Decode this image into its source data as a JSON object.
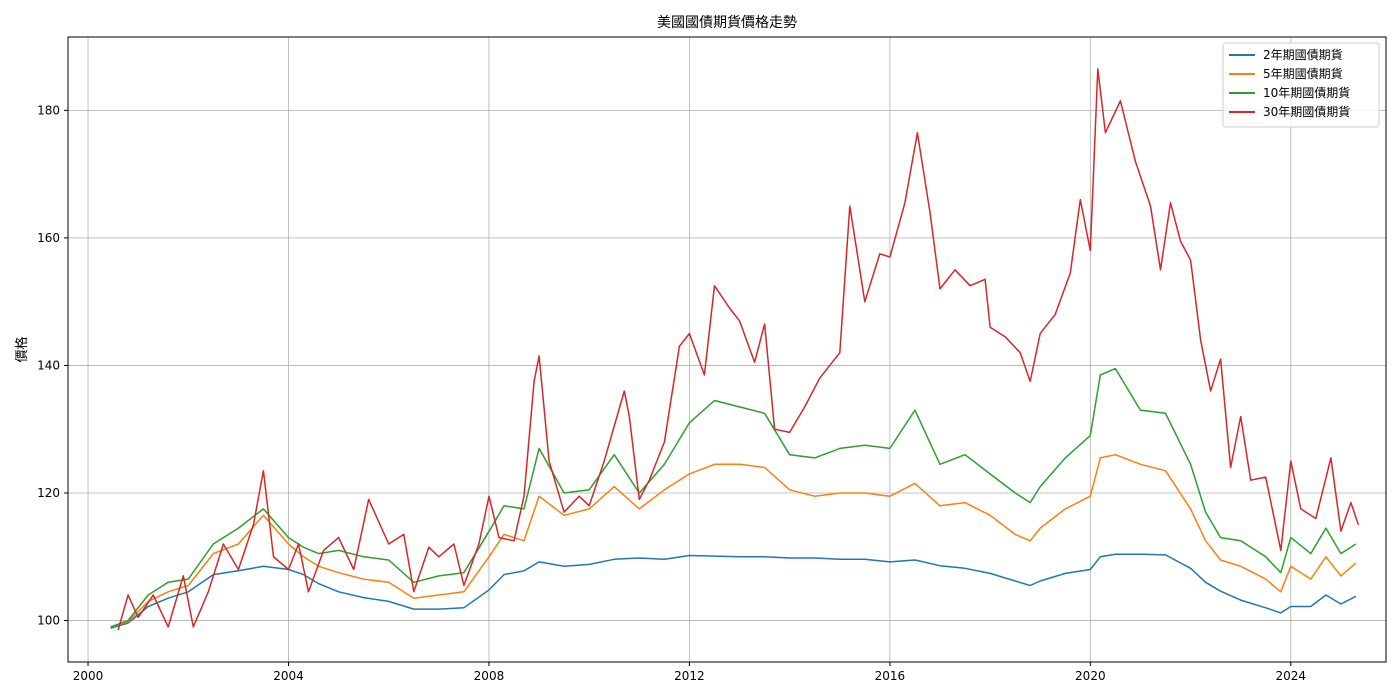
{
  "chart_data": {
    "type": "line",
    "title": "美國國債期貨價格走勢",
    "xlabel": "",
    "ylabel": "價格",
    "xlim": [
      1999.6,
      2025.9
    ],
    "ylim": [
      93.5,
      191.5
    ],
    "x_ticks": [
      2000,
      2004,
      2008,
      2012,
      2016,
      2020,
      2024
    ],
    "y_ticks": [
      100,
      120,
      140,
      160,
      180
    ],
    "grid": true,
    "legend_position": "top-right",
    "series": [
      {
        "name": "2年期國債期貨",
        "color": "#1f77b4",
        "x": [
          2000.45,
          2000.8,
          2001.2,
          2001.6,
          2002.0,
          2002.5,
          2003.0,
          2003.5,
          2004.0,
          2004.3,
          2004.6,
          2005.0,
          2005.5,
          2006.0,
          2006.5,
          2007.0,
          2007.5,
          2008.0,
          2008.3,
          2008.7,
          2009.0,
          2009.5,
          2010.0,
          2010.5,
          2011.0,
          2011.5,
          2012.0,
          2012.5,
          2013.0,
          2013.5,
          2014.0,
          2014.5,
          2015.0,
          2015.5,
          2016.0,
          2016.5,
          2017.0,
          2017.5,
          2018.0,
          2018.5,
          2018.8,
          2019.0,
          2019.5,
          2020.0,
          2020.2,
          2020.5,
          2021.0,
          2021.5,
          2022.0,
          2022.3,
          2022.6,
          2023.0,
          2023.5,
          2023.8,
          2024.0,
          2024.4,
          2024.7,
          2025.0,
          2025.3
        ],
        "values": [
          98.8,
          99.6,
          102.2,
          103.5,
          104.5,
          107.2,
          107.8,
          108.5,
          108.0,
          107.2,
          105.8,
          104.5,
          103.6,
          103.0,
          101.8,
          101.8,
          102.0,
          104.8,
          107.2,
          107.8,
          109.2,
          108.5,
          108.8,
          109.6,
          109.8,
          109.6,
          110.2,
          110.1,
          110.0,
          110.0,
          109.8,
          109.8,
          109.6,
          109.6,
          109.2,
          109.5,
          108.6,
          108.2,
          107.4,
          106.2,
          105.5,
          106.2,
          107.4,
          108.0,
          110.0,
          110.4,
          110.4,
          110.3,
          108.2,
          106.0,
          104.6,
          103.2,
          102.0,
          101.2,
          102.2,
          102.2,
          104.0,
          102.6,
          103.8
        ]
      },
      {
        "name": "5年期國債期貨",
        "color": "#ff7f0e",
        "x": [
          2000.45,
          2000.8,
          2001.2,
          2001.6,
          2002.0,
          2002.5,
          2003.0,
          2003.5,
          2004.0,
          2004.3,
          2004.6,
          2005.0,
          2005.5,
          2006.0,
          2006.5,
          2007.0,
          2007.5,
          2008.0,
          2008.3,
          2008.7,
          2009.0,
          2009.5,
          2010.0,
          2010.5,
          2011.0,
          2011.5,
          2012.0,
          2012.5,
          2013.0,
          2013.5,
          2014.0,
          2014.5,
          2015.0,
          2015.5,
          2016.0,
          2016.5,
          2017.0,
          2017.5,
          2018.0,
          2018.5,
          2018.8,
          2019.0,
          2019.5,
          2020.0,
          2020.2,
          2020.5,
          2021.0,
          2021.5,
          2022.0,
          2022.3,
          2022.6,
          2023.0,
          2023.5,
          2023.8,
          2024.0,
          2024.4,
          2024.7,
          2025.0,
          2025.3
        ],
        "values": [
          99.0,
          99.8,
          103.0,
          104.5,
          105.5,
          110.5,
          112.0,
          116.5,
          112.0,
          110.0,
          108.5,
          107.5,
          106.5,
          106.0,
          103.5,
          104.0,
          104.5,
          110.0,
          113.5,
          112.5,
          119.5,
          116.5,
          117.5,
          121.0,
          117.5,
          120.5,
          123.0,
          124.5,
          124.5,
          124.0,
          120.5,
          119.5,
          120.0,
          120.0,
          119.5,
          121.5,
          118.0,
          118.5,
          116.5,
          113.5,
          112.5,
          114.5,
          117.5,
          119.5,
          125.5,
          126.0,
          124.5,
          123.5,
          117.5,
          112.5,
          109.5,
          108.5,
          106.5,
          104.5,
          108.5,
          106.5,
          110.0,
          107.0,
          109.0
        ]
      },
      {
        "name": "10年期國債期貨",
        "color": "#2ca02c",
        "x": [
          2000.45,
          2000.8,
          2001.2,
          2001.6,
          2002.0,
          2002.5,
          2003.0,
          2003.5,
          2004.0,
          2004.3,
          2004.6,
          2005.0,
          2005.5,
          2006.0,
          2006.5,
          2007.0,
          2007.5,
          2008.0,
          2008.3,
          2008.7,
          2009.0,
          2009.5,
          2010.0,
          2010.5,
          2011.0,
          2011.5,
          2012.0,
          2012.5,
          2013.0,
          2013.5,
          2014.0,
          2014.5,
          2015.0,
          2015.5,
          2016.0,
          2016.5,
          2017.0,
          2017.5,
          2018.0,
          2018.5,
          2018.8,
          2019.0,
          2019.5,
          2020.0,
          2020.2,
          2020.5,
          2021.0,
          2021.5,
          2022.0,
          2022.3,
          2022.6,
          2023.0,
          2023.5,
          2023.8,
          2024.0,
          2024.4,
          2024.7,
          2025.0,
          2025.3
        ],
        "values": [
          99.0,
          100.0,
          104.0,
          106.0,
          106.5,
          112.0,
          114.5,
          117.5,
          113.0,
          111.5,
          110.5,
          111.0,
          110.0,
          109.5,
          106.0,
          107.0,
          107.5,
          114.0,
          118.0,
          117.5,
          127.0,
          120.0,
          120.5,
          126.0,
          120.0,
          124.5,
          131.0,
          134.5,
          133.5,
          132.5,
          126.0,
          125.5,
          127.0,
          127.5,
          127.0,
          133.0,
          124.5,
          126.0,
          123.0,
          120.0,
          118.5,
          121.0,
          125.5,
          129.0,
          138.5,
          139.5,
          133.0,
          132.5,
          124.5,
          117.0,
          113.0,
          112.5,
          110.0,
          107.5,
          113.0,
          110.5,
          114.5,
          110.5,
          112.0
        ]
      },
      {
        "name": "30年期國債期貨",
        "color": "#d62728",
        "x": [
          2000.6,
          2000.8,
          2001.0,
          2001.3,
          2001.6,
          2001.9,
          2002.1,
          2002.4,
          2002.7,
          2003.0,
          2003.3,
          2003.5,
          2003.7,
          2004.0,
          2004.2,
          2004.4,
          2004.7,
          2005.0,
          2005.3,
          2005.6,
          2006.0,
          2006.3,
          2006.5,
          2006.8,
          2007.0,
          2007.3,
          2007.5,
          2007.8,
          2008.0,
          2008.2,
          2008.5,
          2008.7,
          2008.9,
          2009.0,
          2009.2,
          2009.5,
          2009.8,
          2010.0,
          2010.3,
          2010.7,
          2010.8,
          2011.0,
          2011.2,
          2011.5,
          2011.8,
          2012.0,
          2012.3,
          2012.5,
          2012.8,
          2013.0,
          2013.3,
          2013.5,
          2013.7,
          2014.0,
          2014.3,
          2014.6,
          2015.0,
          2015.2,
          2015.5,
          2015.8,
          2016.0,
          2016.3,
          2016.55,
          2016.8,
          2017.0,
          2017.3,
          2017.6,
          2017.9,
          2018.0,
          2018.3,
          2018.6,
          2018.8,
          2019.0,
          2019.3,
          2019.6,
          2019.8,
          2020.0,
          2020.15,
          2020.3,
          2020.6,
          2020.9,
          2021.2,
          2021.4,
          2021.6,
          2021.8,
          2022.0,
          2022.2,
          2022.4,
          2022.6,
          2022.8,
          2023.0,
          2023.2,
          2023.5,
          2023.8,
          2024.0,
          2024.2,
          2024.5,
          2024.8,
          2025.0,
          2025.2,
          2025.35
        ],
        "values": [
          98.5,
          104.0,
          100.5,
          104.0,
          99.0,
          107.0,
          99.0,
          104.5,
          112.0,
          108.0,
          115.0,
          123.5,
          110.0,
          108.0,
          112.0,
          104.5,
          111.0,
          113.0,
          108.0,
          119.0,
          112.0,
          113.5,
          104.5,
          111.5,
          110.0,
          112.0,
          105.5,
          112.0,
          119.5,
          113.0,
          112.5,
          119.5,
          137.5,
          141.5,
          125.0,
          117.0,
          119.5,
          118.0,
          125.0,
          136.0,
          132.0,
          119.0,
          122.0,
          128.0,
          143.0,
          145.0,
          138.5,
          152.5,
          149.0,
          147.0,
          140.5,
          146.5,
          130.0,
          129.5,
          133.5,
          138.0,
          142.0,
          165.0,
          150.0,
          157.5,
          157.0,
          165.5,
          176.5,
          164.0,
          152.0,
          155.0,
          152.5,
          153.5,
          146.0,
          144.5,
          142.0,
          137.5,
          145.0,
          148.0,
          154.5,
          166.0,
          158.0,
          186.5,
          176.5,
          181.5,
          172.0,
          165.0,
          155.0,
          165.5,
          159.5,
          156.5,
          144.0,
          136.0,
          141.0,
          124.0,
          132.0,
          122.0,
          122.5,
          111.0,
          125.0,
          117.5,
          116.0,
          125.5,
          114.0,
          118.5,
          115.0
        ]
      }
    ]
  }
}
